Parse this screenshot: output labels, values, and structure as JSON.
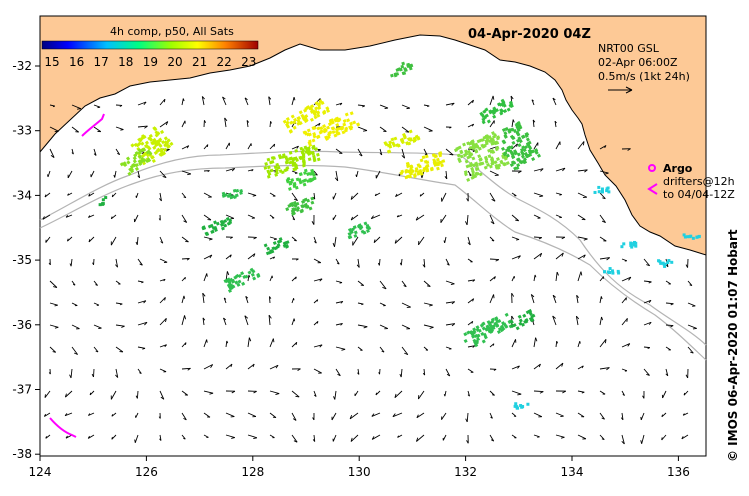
{
  "colorbar": {
    "title": "4h comp, p50, All Sats",
    "ticks": [
      "15",
      "16",
      "17",
      "18",
      "19",
      "20",
      "21",
      "22",
      "23"
    ],
    "range": [
      15,
      23.5
    ]
  },
  "date_label": "04-Apr-2020 04Z",
  "current_info": {
    "line1": "NRT00 GSL",
    "line2": "02-Apr 06:00Z",
    "line3": "0.5m/s (1kt 24h)"
  },
  "legend": {
    "argo_label": "Argo",
    "drifters_line1": "drifters@12h",
    "drifters_line2": "to 04/04-12Z",
    "argo_color": "#ff00ff",
    "drifter_color": "#ff00ff"
  },
  "credit": "© IMOS 06-Apr-2020 01:07 Hobart",
  "axes": {
    "lon_range": [
      124,
      136.6
    ],
    "lat_range": [
      -38.1,
      -31.5
    ],
    "lon_ticks": [
      "124",
      "126",
      "128",
      "130",
      "132",
      "134",
      "136"
    ],
    "lat_ticks": [
      "-32",
      "-33",
      "-34",
      "-35",
      "-36",
      "-37",
      "-38"
    ]
  },
  "colors": {
    "land": "#fdc996",
    "ocean": "#ffffff",
    "contour": "#b4b4b4"
  }
}
